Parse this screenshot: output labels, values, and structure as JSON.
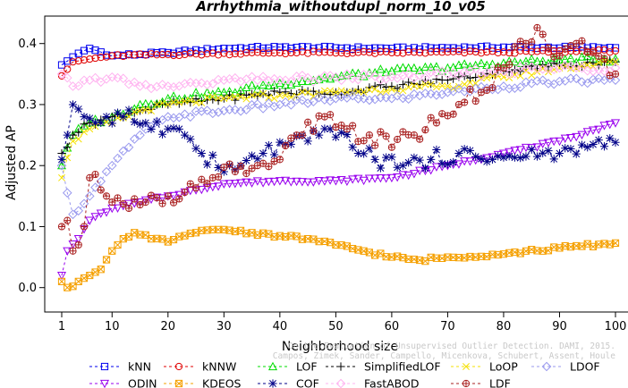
{
  "chart_data": {
    "type": "line",
    "title": "Arrhythmia_withoutdupl_norm_10_v05",
    "xlabel": "Neighborhood size",
    "ylabel": "Adjusted AP",
    "xlim": [
      1,
      100
    ],
    "ylim": [
      -0.04,
      0.445
    ],
    "x_ticks": [
      "1",
      "10",
      "20",
      "30",
      "40",
      "50",
      "60",
      "70",
      "80",
      "90",
      "100"
    ],
    "y_ticks": [
      "0.0",
      "0.1",
      "0.2",
      "0.3",
      "0.4"
    ],
    "grid": false,
    "legend_position": "bottom",
    "credit": [
      "Campos, Zimek, Sander, Campello, Micenkova, Schubert, Assent, Houle",
      "On the Evaluation of Unsupervised Outlier Detection. DAMI, 2015."
    ],
    "series": [
      {
        "name": "kNN",
        "color": "#0000ee",
        "marker": "square",
        "line": "dashed",
        "keypoints": [
          [
            1,
            0.365
          ],
          [
            3,
            0.378
          ],
          [
            6,
            0.392
          ],
          [
            10,
            0.38
          ],
          [
            20,
            0.385
          ],
          [
            30,
            0.392
          ],
          [
            40,
            0.394
          ],
          [
            60,
            0.392
          ],
          [
            80,
            0.394
          ],
          [
            100,
            0.393
          ]
        ]
      },
      {
        "name": "kNNW",
        "color": "#e00000",
        "marker": "circle",
        "line": "dashed",
        "keypoints": [
          [
            1,
            0.347
          ],
          [
            3,
            0.37
          ],
          [
            10,
            0.38
          ],
          [
            20,
            0.382
          ],
          [
            40,
            0.385
          ],
          [
            60,
            0.385
          ],
          [
            80,
            0.386
          ],
          [
            100,
            0.388
          ]
        ]
      },
      {
        "name": "LOF",
        "color": "#00dd00",
        "marker": "triangle-up",
        "line": "dashed",
        "keypoints": [
          [
            1,
            0.2
          ],
          [
            3,
            0.25
          ],
          [
            6,
            0.27
          ],
          [
            10,
            0.28
          ],
          [
            15,
            0.3
          ],
          [
            20,
            0.31
          ],
          [
            30,
            0.32
          ],
          [
            40,
            0.335
          ],
          [
            50,
            0.345
          ],
          [
            60,
            0.355
          ],
          [
            70,
            0.36
          ],
          [
            80,
            0.368
          ],
          [
            90,
            0.373
          ],
          [
            100,
            0.375
          ]
        ]
      },
      {
        "name": "SimplifiedLOF",
        "color": "#000000",
        "marker": "plus",
        "line": "dashed",
        "keypoints": [
          [
            1,
            0.22
          ],
          [
            3,
            0.25
          ],
          [
            6,
            0.27
          ],
          [
            10,
            0.28
          ],
          [
            15,
            0.29
          ],
          [
            20,
            0.3
          ],
          [
            30,
            0.31
          ],
          [
            40,
            0.32
          ],
          [
            50,
            0.32
          ],
          [
            60,
            0.33
          ],
          [
            70,
            0.34
          ],
          [
            80,
            0.355
          ],
          [
            90,
            0.365
          ],
          [
            100,
            0.37
          ]
        ]
      },
      {
        "name": "LoOP",
        "color": "#f5e000",
        "marker": "x",
        "line": "dashed",
        "keypoints": [
          [
            1,
            0.18
          ],
          [
            3,
            0.24
          ],
          [
            6,
            0.26
          ],
          [
            10,
            0.27
          ],
          [
            15,
            0.29
          ],
          [
            20,
            0.3
          ],
          [
            30,
            0.31
          ],
          [
            40,
            0.315
          ],
          [
            50,
            0.32
          ],
          [
            60,
            0.325
          ],
          [
            70,
            0.33
          ],
          [
            80,
            0.345
          ],
          [
            90,
            0.36
          ],
          [
            100,
            0.37
          ]
        ]
      },
      {
        "name": "LDOF",
        "color": "#9999ee",
        "marker": "diamond",
        "line": "dashed",
        "keypoints": [
          [
            1,
            0.2
          ],
          [
            3,
            0.12
          ],
          [
            6,
            0.15
          ],
          [
            10,
            0.2
          ],
          [
            15,
            0.25
          ],
          [
            20,
            0.28
          ],
          [
            30,
            0.29
          ],
          [
            40,
            0.3
          ],
          [
            50,
            0.31
          ],
          [
            60,
            0.31
          ],
          [
            70,
            0.32
          ],
          [
            80,
            0.33
          ],
          [
            90,
            0.338
          ],
          [
            100,
            0.34
          ]
        ]
      },
      {
        "name": "ODIN",
        "color": "#9900ee",
        "marker": "triangle-down",
        "line": "dashed",
        "keypoints": [
          [
            1,
            0.02
          ],
          [
            2,
            0.06
          ],
          [
            4,
            0.08
          ],
          [
            6,
            0.11
          ],
          [
            10,
            0.13
          ],
          [
            15,
            0.14
          ],
          [
            20,
            0.15
          ],
          [
            25,
            0.16
          ],
          [
            30,
            0.17
          ],
          [
            40,
            0.175
          ],
          [
            50,
            0.175
          ],
          [
            60,
            0.18
          ],
          [
            70,
            0.2
          ],
          [
            80,
            0.22
          ],
          [
            90,
            0.24
          ],
          [
            100,
            0.27
          ]
        ]
      },
      {
        "name": "KDEOS",
        "color": "#f5a000",
        "marker": "square-x",
        "line": "dashed",
        "keypoints": [
          [
            1,
            0.01
          ],
          [
            2,
            0.0
          ],
          [
            4,
            0.01
          ],
          [
            6,
            0.02
          ],
          [
            8,
            0.03
          ],
          [
            10,
            0.06
          ],
          [
            12,
            0.08
          ],
          [
            14,
            0.09
          ],
          [
            17,
            0.08
          ],
          [
            20,
            0.075
          ],
          [
            25,
            0.09
          ],
          [
            30,
            0.095
          ],
          [
            35,
            0.09
          ],
          [
            40,
            0.085
          ],
          [
            45,
            0.08
          ],
          [
            50,
            0.07
          ],
          [
            55,
            0.06
          ],
          [
            60,
            0.05
          ],
          [
            65,
            0.045
          ],
          [
            70,
            0.05
          ],
          [
            80,
            0.055
          ],
          [
            90,
            0.065
          ],
          [
            100,
            0.073
          ]
        ]
      },
      {
        "name": "COF",
        "color": "#000088",
        "marker": "asterisk",
        "line": "dashed",
        "keypoints": [
          [
            1,
            0.21
          ],
          [
            2,
            0.25
          ],
          [
            3,
            0.3
          ],
          [
            5,
            0.28
          ],
          [
            8,
            0.27
          ],
          [
            12,
            0.28
          ],
          [
            16,
            0.27
          ],
          [
            20,
            0.26
          ],
          [
            23,
            0.25
          ],
          [
            26,
            0.22
          ],
          [
            30,
            0.19
          ],
          [
            33,
            0.2
          ],
          [
            37,
            0.22
          ],
          [
            41,
            0.235
          ],
          [
            45,
            0.24
          ],
          [
            49,
            0.26
          ],
          [
            53,
            0.23
          ],
          [
            57,
            0.21
          ],
          [
            62,
            0.2
          ],
          [
            67,
            0.21
          ],
          [
            72,
            0.22
          ],
          [
            78,
            0.21
          ],
          [
            84,
            0.215
          ],
          [
            90,
            0.22
          ],
          [
            95,
            0.23
          ],
          [
            100,
            0.238
          ]
        ]
      },
      {
        "name": "FastABOD",
        "color": "#ffb3f0",
        "marker": "diamond",
        "line": "dashed",
        "keypoints": [
          [
            1,
            0.35
          ],
          [
            3,
            0.33
          ],
          [
            6,
            0.34
          ],
          [
            10,
            0.345
          ],
          [
            15,
            0.33
          ],
          [
            20,
            0.33
          ],
          [
            25,
            0.335
          ],
          [
            30,
            0.34
          ],
          [
            40,
            0.34
          ],
          [
            50,
            0.345
          ],
          [
            60,
            0.345
          ],
          [
            70,
            0.35
          ],
          [
            80,
            0.355
          ],
          [
            90,
            0.36
          ],
          [
            100,
            0.36
          ]
        ]
      },
      {
        "name": "LDF",
        "color": "#aa2222",
        "marker": "circle-plus",
        "line": "dashed",
        "keypoints": [
          [
            1,
            0.1
          ],
          [
            2,
            0.11
          ],
          [
            3,
            0.06
          ],
          [
            4,
            0.07
          ],
          [
            5,
            0.1
          ],
          [
            6,
            0.18
          ],
          [
            8,
            0.16
          ],
          [
            10,
            0.14
          ],
          [
            13,
            0.13
          ],
          [
            16,
            0.14
          ],
          [
            20,
            0.15
          ],
          [
            24,
            0.17
          ],
          [
            28,
            0.18
          ],
          [
            32,
            0.19
          ],
          [
            36,
            0.2
          ],
          [
            40,
            0.21
          ],
          [
            44,
            0.25
          ],
          [
            48,
            0.28
          ],
          [
            52,
            0.26
          ],
          [
            56,
            0.25
          ],
          [
            60,
            0.23
          ],
          [
            64,
            0.25
          ],
          [
            68,
            0.27
          ],
          [
            72,
            0.3
          ],
          [
            76,
            0.32
          ],
          [
            80,
            0.36
          ],
          [
            84,
            0.4
          ],
          [
            87,
            0.415
          ],
          [
            90,
            0.38
          ],
          [
            93,
            0.4
          ],
          [
            96,
            0.385
          ],
          [
            100,
            0.35
          ]
        ]
      }
    ]
  }
}
